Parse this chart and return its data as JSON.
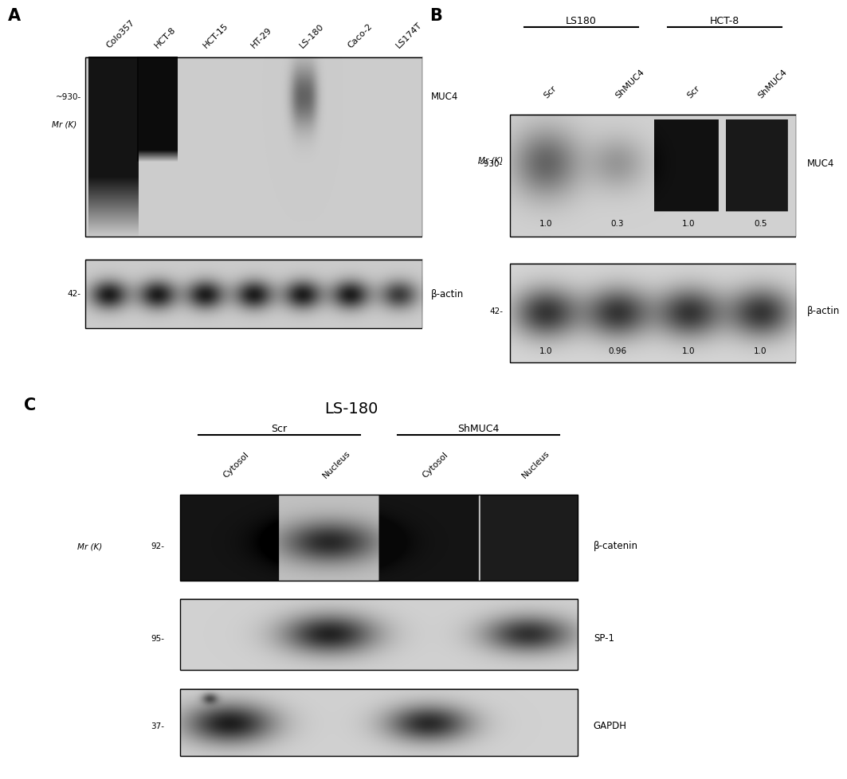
{
  "bg_color": "#ffffff",
  "panel_A": {
    "label": "A",
    "col_labels": [
      "Colo357",
      "HCT-8",
      "HCT-15",
      "HT-29",
      "LS-180",
      "Caco-2",
      "LS174T"
    ],
    "mr_label": "Mr (K)",
    "blot1_marker": "~930-",
    "blot1_label": "MUC4",
    "blot2_marker": "42-",
    "blot2_label": "β-actin"
  },
  "panel_B": {
    "label": "B",
    "group1_label": "LS180",
    "group2_label": "HCT-8",
    "col_labels": [
      "Scr",
      "ShMUC4",
      "Scr",
      "ShMUC4"
    ],
    "mr_label": "Mr (K)",
    "blot1_marker": "~930-",
    "blot1_label": "MUC4",
    "blot1_values": [
      "1.0",
      "0.3",
      "1.0",
      "0.5"
    ],
    "blot2_marker": "42-",
    "blot2_label": "β-actin",
    "blot2_values": [
      "1.0",
      "0.96",
      "1.0",
      "1.0"
    ]
  },
  "panel_C": {
    "label": "C",
    "title": "LS-180",
    "group1_label": "Scr",
    "group2_label": "ShMUC4",
    "col_labels": [
      "Cytosol",
      "Nucleus",
      "Cytosol",
      "Nucleus"
    ],
    "mr_label": "Mr (K)",
    "blot1_marker": "92-",
    "blot1_label": "β-catenin",
    "blot2_marker": "95-",
    "blot2_label": "SP-1",
    "blot3_marker": "37-",
    "blot3_label": "GAPDH"
  }
}
